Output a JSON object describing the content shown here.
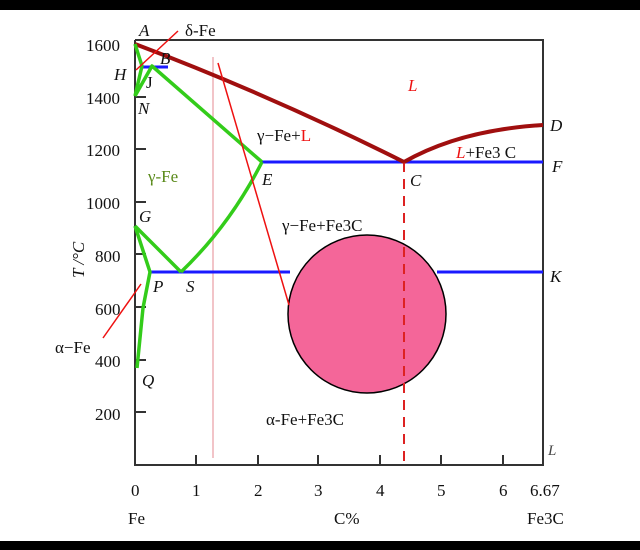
{
  "colors": {
    "liquidus": "#a00f0f",
    "solvus": "#33cc1a",
    "isotherm": "#1a1aff",
    "pointer": "#ee1111",
    "eutectoid_circle": "#f46699",
    "marker_line": "#f2c4c8"
  },
  "axes": {
    "ylabel": "T /°C",
    "y_ticks": [
      "1600",
      "1400",
      "1200",
      "1000",
      "800",
      "600",
      "400",
      "200"
    ],
    "x_ticks": [
      "0",
      "1",
      "2",
      "3",
      "4",
      "5",
      "6",
      "6.67"
    ],
    "x_label": "C%",
    "x_left": "Fe",
    "x_right": "Fe3C"
  },
  "points": {
    "A": "A",
    "B": "B",
    "H": "H",
    "J": "J",
    "N": "N",
    "G": "G",
    "P": "P",
    "S": "S",
    "Q": "Q",
    "E": "E",
    "C": "C",
    "D": "D",
    "F": "F",
    "K": "K",
    "L": "L"
  },
  "regions": {
    "delta_fe": "δ-Fe",
    "liquid": "L",
    "gamma_fe": "γ-Fe",
    "gamma_l_prefix": "γ−Fe+",
    "gamma_l_suffix": "L",
    "l_fe3c_prefix": "L",
    "l_fe3c_suffix": "+Fe3 C",
    "gamma_fe3c": "γ−Fe+Fe3C",
    "alpha_fe3c": "α-Fe+Fe3C",
    "alpha_fe": "α−Fe"
  }
}
